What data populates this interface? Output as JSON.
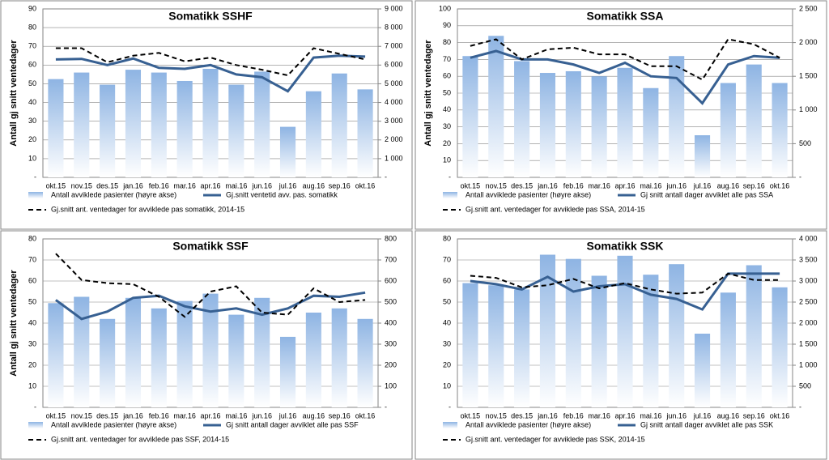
{
  "chart_data": [
    {
      "type": "combo",
      "title": "Somatikk SSHF",
      "y_label": "Antall gj snitt ventedager",
      "categories": [
        "okt.15",
        "nov.15",
        "des.15",
        "jan.16",
        "feb.16",
        "mar.16",
        "apr.16",
        "mai.16",
        "jun.16",
        "jul.16",
        "aug.16",
        "sep.16",
        "okt.16"
      ],
      "ylim": [
        0,
        90
      ],
      "yticks": [
        {
          "value": 0,
          "label": "-"
        },
        10,
        20,
        30,
        40,
        50,
        60,
        70,
        80,
        90
      ],
      "y2lim": [
        0,
        9000
      ],
      "y2ticks": [
        {
          "value": 0,
          "label": "-"
        },
        {
          "value": 1000,
          "label": "1 000"
        },
        {
          "value": 2000,
          "label": "2 000"
        },
        {
          "value": 3000,
          "label": "3 000"
        },
        {
          "value": 4000,
          "label": "4 000"
        },
        {
          "value": 5000,
          "label": "5 000"
        },
        {
          "value": 6000,
          "label": "6 000"
        },
        {
          "value": 7000,
          "label": "7 000"
        },
        {
          "value": 8000,
          "label": "8 000"
        },
        {
          "value": 9000,
          "label": "9 000"
        }
      ],
      "series": [
        {
          "name": "Antall avviklede pasienter (høyre akse)",
          "type": "bar",
          "axis": "y2",
          "color": "#8eb4e3",
          "values": [
            5250,
            5600,
            4950,
            5750,
            5600,
            5150,
            5800,
            4950,
            5650,
            2700,
            4600,
            5550,
            4700
          ]
        },
        {
          "name": "Gj.snitt ventetid avv. pas. somatikk",
          "type": "line",
          "color": "#376092",
          "values": [
            63,
            63.3,
            60,
            63.5,
            58.5,
            58,
            60,
            55,
            53.5,
            46,
            64,
            65,
            64.5
          ]
        },
        {
          "name": "Gj.snitt ant. ventedager for avviklede pas somatikk, 2014-15",
          "type": "line",
          "dashed": true,
          "color": "#000000",
          "values": [
            69,
            69,
            61.5,
            65,
            66.5,
            62,
            64,
            60,
            57.5,
            54.5,
            69,
            66,
            63
          ]
        }
      ]
    },
    {
      "type": "combo",
      "title": "Somatikk SSA",
      "y_label": "Antall gj snitt ventedager",
      "categories": [
        "okt.15",
        "nov.15",
        "des.15",
        "jan.16",
        "feb.16",
        "mar.16",
        "apr.16",
        "mai.16",
        "jun.16",
        "jul.16",
        "aug.16",
        "sep.16",
        "okt.16"
      ],
      "ylim": [
        0,
        100
      ],
      "yticks": [
        {
          "value": 0,
          "label": "-"
        },
        10,
        20,
        30,
        40,
        50,
        60,
        70,
        80,
        90,
        100
      ],
      "y2lim": [
        0,
        2500
      ],
      "y2ticks": [
        {
          "value": 0,
          "label": "-"
        },
        500,
        {
          "value": 1000,
          "label": "1 000"
        },
        {
          "value": 1500,
          "label": "1 500"
        },
        {
          "value": 2000,
          "label": "2 000"
        },
        {
          "value": 2500,
          "label": "2 500"
        }
      ],
      "series": [
        {
          "name": "Antall avviklede pasienter (høyre akse)",
          "type": "bar",
          "axis": "y2",
          "color": "#8eb4e3",
          "values": [
            1800,
            2100,
            1725,
            1550,
            1575,
            1500,
            1625,
            1325,
            1800,
            625,
            1400,
            1675,
            1400
          ]
        },
        {
          "name": "Gj snitt antall dager avviklet alle pas SSA",
          "type": "line",
          "color": "#376092",
          "values": [
            71,
            75,
            70,
            70,
            67,
            62,
            68,
            60,
            59,
            44,
            67,
            72,
            71
          ]
        },
        {
          "name": "Gj.snitt ant. ventedager for avviklede pas SSA, 2014-15",
          "type": "line",
          "dashed": true,
          "color": "#000000",
          "values": [
            78,
            82,
            70,
            76,
            77,
            73,
            73,
            66,
            66,
            58,
            82,
            79,
            71
          ]
        }
      ]
    },
    {
      "type": "combo",
      "title": "Somatikk SSF",
      "y_label": "Antall gj snitt ventedager",
      "categories": [
        "okt.15",
        "nov.15",
        "des.15",
        "jan.16",
        "feb.16",
        "mar.16",
        "apr.16",
        "mai.16",
        "jun.16",
        "jul.16",
        "aug.16",
        "sep.16",
        "okt.16"
      ],
      "ylim": [
        0,
        80
      ],
      "yticks": [
        {
          "value": 0,
          "label": "-"
        },
        10,
        20,
        30,
        40,
        50,
        60,
        70,
        80
      ],
      "y2lim": [
        0,
        800
      ],
      "y2ticks": [
        {
          "value": 0,
          "label": "-"
        },
        100,
        200,
        300,
        400,
        500,
        600,
        700,
        800
      ],
      "series": [
        {
          "name": "Antall avviklede pasienter (høyre akse)",
          "type": "bar",
          "axis": "y2",
          "color": "#8eb4e3",
          "values": [
            495,
            525,
            420,
            520,
            470,
            505,
            540,
            440,
            520,
            335,
            450,
            470,
            420
          ]
        },
        {
          "name": "Gj snitt antall dager avviklet alle pas SSF",
          "type": "line",
          "color": "#376092",
          "values": [
            51,
            42,
            45.5,
            52,
            53,
            48,
            45.5,
            47,
            44,
            47,
            53,
            52.5,
            54.5
          ]
        },
        {
          "name": "Gj.snitt ant. ventedager for avviklede pas SSF, 2014-15",
          "type": "line",
          "dashed": true,
          "color": "#000000",
          "values": [
            73,
            60.5,
            59,
            58.5,
            52.5,
            43,
            55,
            57.5,
            45,
            44,
            56.5,
            50,
            51
          ]
        }
      ]
    },
    {
      "type": "combo",
      "title": "Somatikk SSK",
      "categories": [
        "okt.15",
        "nov.15",
        "des.15",
        "jan.16",
        "feb.16",
        "mar.16",
        "apr.16",
        "mai.16",
        "jun.16",
        "jul.16",
        "aug.16",
        "sep.16",
        "okt.16"
      ],
      "ylim": [
        0,
        80
      ],
      "yticks": [
        {
          "value": 0,
          "label": "-"
        },
        10,
        20,
        30,
        40,
        50,
        60,
        70,
        80
      ],
      "y2lim": [
        0,
        4000
      ],
      "y2ticks": [
        {
          "value": 0,
          "label": "-"
        },
        500,
        {
          "value": 1000,
          "label": "1 000"
        },
        {
          "value": 1500,
          "label": "1 500"
        },
        {
          "value": 2000,
          "label": "2 000"
        },
        {
          "value": 2500,
          "label": "2 500"
        },
        {
          "value": 3000,
          "label": "3 000"
        },
        {
          "value": 3500,
          "label": "3 500"
        },
        {
          "value": 4000,
          "label": "4 000"
        }
      ],
      "series": [
        {
          "name": "Antall avviklede pasienter (høyre akse)",
          "type": "bar",
          "axis": "y2",
          "color": "#8eb4e3",
          "values": [
            2950,
            2900,
            2800,
            3625,
            3525,
            3125,
            3600,
            3150,
            3400,
            1750,
            2725,
            3375,
            2850
          ]
        },
        {
          "name": "Gj snitt antall dager avviklet alle pas SSK",
          "type": "line",
          "color": "#376092",
          "values": [
            60,
            58.5,
            56,
            62,
            55,
            57.5,
            58.5,
            53.5,
            51.5,
            46.5,
            63.5,
            63.5,
            63.5
          ]
        },
        {
          "name": "Gj.snitt ant. ventedager for avviklede pas SSK, 2014-15",
          "type": "line",
          "dashed": true,
          "color": "#000000",
          "values": [
            62.5,
            61.5,
            57,
            58,
            61,
            56.5,
            59,
            56,
            54,
            54.5,
            63.5,
            60.5,
            60.5
          ]
        }
      ]
    }
  ]
}
